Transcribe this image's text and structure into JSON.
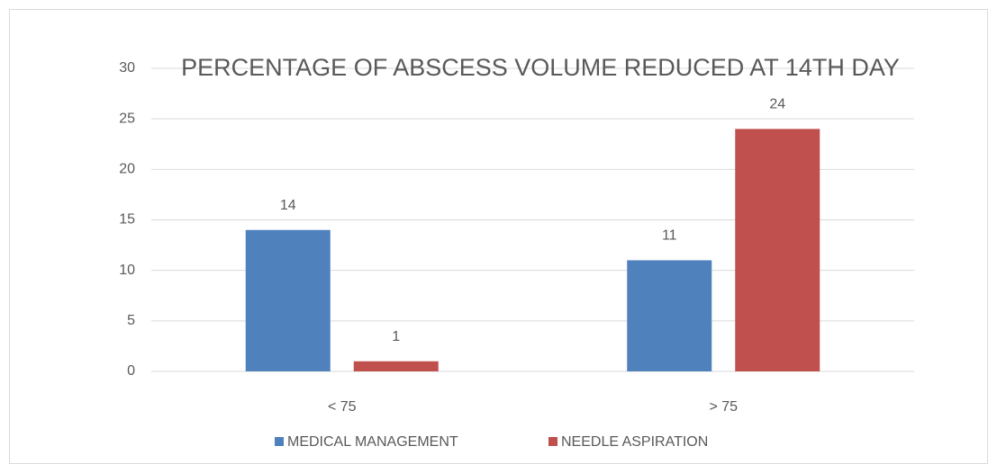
{
  "chart_data": {
    "type": "bar",
    "title": "PERCENTAGE OF ABSCESS VOLUME REDUCED AT 14TH DAY",
    "categories": [
      "< 75",
      "> 75"
    ],
    "series": [
      {
        "name": "MEDICAL MANAGEMENT",
        "color": "#4f81bd",
        "values": [
          14,
          11
        ]
      },
      {
        "name": "NEEDLE ASPIRATION",
        "color": "#c0504d",
        "values": [
          1,
          24
        ]
      }
    ],
    "ylim": [
      0,
      30
    ],
    "yticks": [
      0,
      5,
      10,
      15,
      20,
      25,
      30
    ],
    "grid": true,
    "legend": "bottom"
  }
}
